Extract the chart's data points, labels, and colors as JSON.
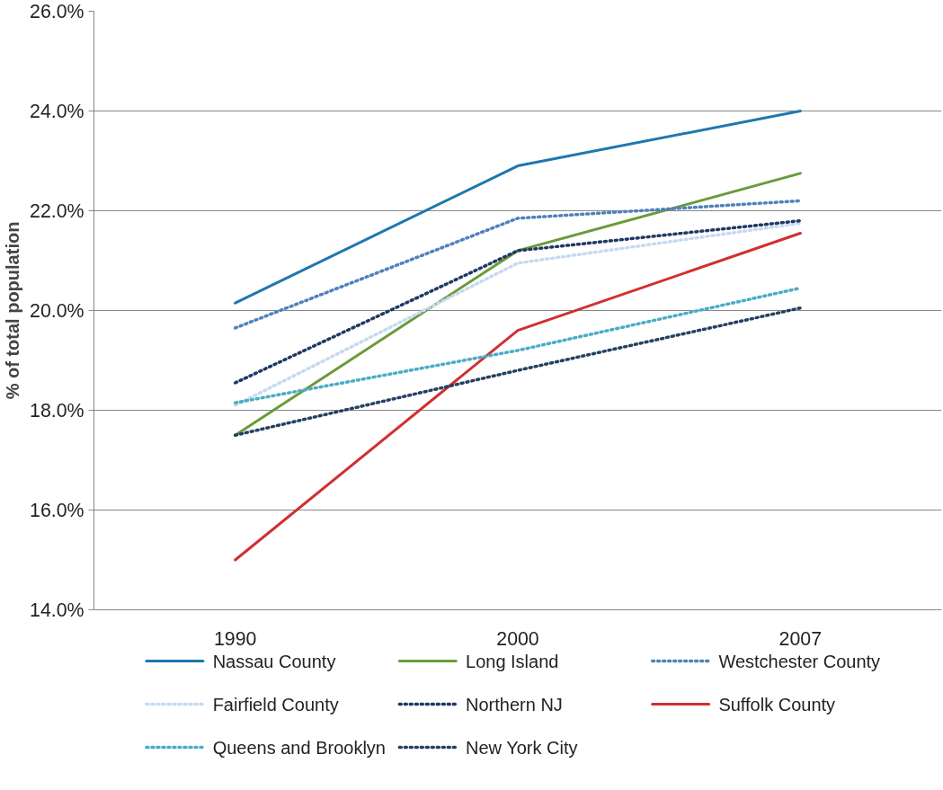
{
  "chart_data": {
    "type": "line",
    "ylabel": "% of total population",
    "categories": [
      "1990",
      "2000",
      "2007"
    ],
    "ylim": [
      14,
      26
    ],
    "yticks": [
      {
        "value": 14,
        "label": "14.0%"
      },
      {
        "value": 16,
        "label": "16.0%"
      },
      {
        "value": 18,
        "label": "18.0%"
      },
      {
        "value": 20,
        "label": "20.0%"
      },
      {
        "value": 22,
        "label": "22.0%"
      },
      {
        "value": 24,
        "label": "24.0%"
      },
      {
        "value": 26,
        "label": "26.0%"
      }
    ],
    "grid": "y",
    "legend": "bottom",
    "marker": "none",
    "series": [
      {
        "name": "Nassau County",
        "color": "#1f77b0",
        "line_style": "solid",
        "values": [
          20.15,
          22.9,
          24.0
        ]
      },
      {
        "name": "Long Island",
        "color": "#6a9a3a",
        "line_style": "solid",
        "values": [
          17.5,
          21.2,
          22.75
        ]
      },
      {
        "name": "Westchester County",
        "color": "#4f81bd",
        "line_style": "dotted",
        "values": [
          19.65,
          21.85,
          22.2
        ]
      },
      {
        "name": "Fairfield County",
        "color": "#c6d9f1",
        "line_style": "dotted",
        "values": [
          18.1,
          20.95,
          21.75
        ]
      },
      {
        "name": "Northern NJ",
        "color": "#1f3864",
        "line_style": "dotted",
        "values": [
          18.55,
          21.2,
          21.8
        ]
      },
      {
        "name": "Suffolk County",
        "color": "#d03030",
        "line_style": "solid",
        "values": [
          15.0,
          19.6,
          21.55
        ]
      },
      {
        "name": "Queens and Brooklyn",
        "color": "#4bacc6",
        "line_style": "dotted",
        "values": [
          18.15,
          19.2,
          20.45
        ]
      },
      {
        "name": "New York City",
        "color": "#254061",
        "line_style": "dotted",
        "values": [
          17.5,
          18.8,
          20.05
        ]
      }
    ]
  }
}
